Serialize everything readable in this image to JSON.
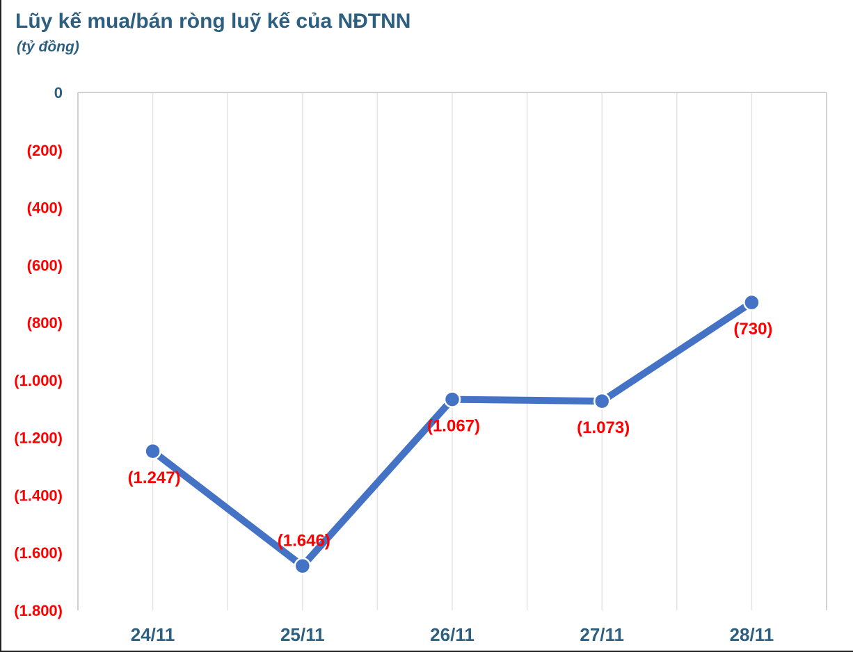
{
  "page": {
    "title": "Lũy kế mua/bán ròng luỹ kế của NĐTNN",
    "subtitle": "(tỷ đồng)"
  },
  "colors": {
    "series_line": "#4472C4",
    "marker_fill": "#4472C4",
    "data_label": "#FF0000",
    "y_tick_negative": "#FF0000",
    "y_tick_zero": "#2D5F80",
    "x_tick": "#2D5F80",
    "gridline": "#E4E4E4",
    "plot_border": "#D2D2D2"
  },
  "chart_data": {
    "type": "line",
    "title": "Lũy kế mua/bán ròng luỹ kế của NĐTNN",
    "unit_label": "(tỷ đồng)",
    "categories": [
      "24/11",
      "25/11",
      "26/11",
      "27/11",
      "28/11"
    ],
    "values": [
      -1247,
      -1646,
      -1067,
      -1073,
      -730
    ],
    "point_labels": [
      "(1.247)",
      "(1.646)",
      "(1.067)",
      "(1.073)",
      "(730)"
    ],
    "label_positions": [
      "below",
      "above",
      "below",
      "below",
      "below"
    ],
    "ylim": [
      -1800,
      0
    ],
    "y_ticks": [
      {
        "value": 0,
        "label": "0"
      },
      {
        "value": -200,
        "label": "(200)"
      },
      {
        "value": -400,
        "label": "(400)"
      },
      {
        "value": -600,
        "label": "(600)"
      },
      {
        "value": -800,
        "label": "(800)"
      },
      {
        "value": -1000,
        "label": "(1.000)"
      },
      {
        "value": -1200,
        "label": "(1.200)"
      },
      {
        "value": -1400,
        "label": "(1.400)"
      },
      {
        "value": -1600,
        "label": "(1.600)"
      },
      {
        "value": -1800,
        "label": "(1.800)"
      }
    ],
    "grid": "vertical-only",
    "legend": "none"
  }
}
